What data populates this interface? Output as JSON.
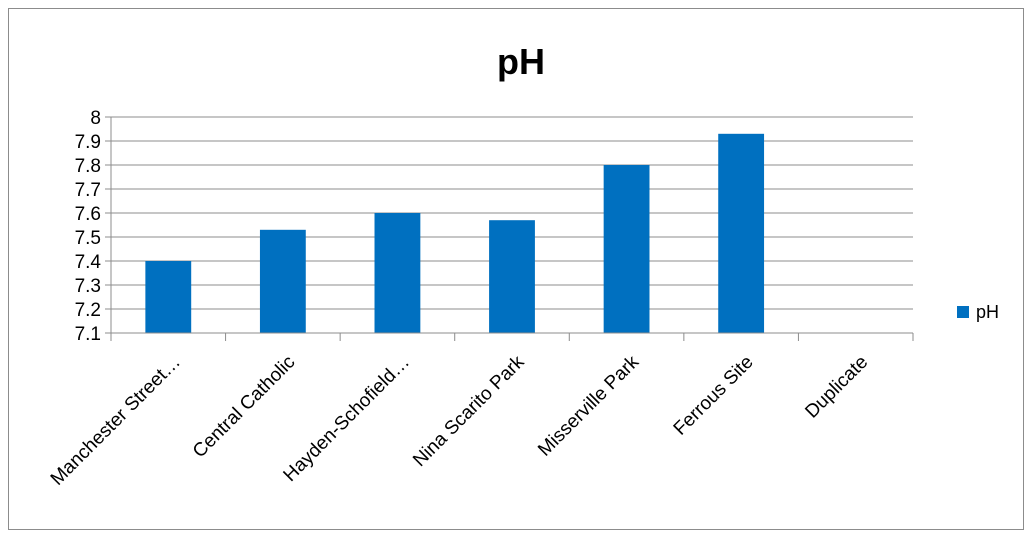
{
  "chart_data": {
    "type": "bar",
    "title": "pH",
    "categories": [
      "Manchester Street…",
      "Central Catholic",
      "Hayden-Schofield…",
      "Nina Scarito Park",
      "Misserville Park",
      "Ferrous Site",
      "Duplicate"
    ],
    "series": [
      {
        "name": "pH",
        "values": [
          7.4,
          7.53,
          7.6,
          7.57,
          7.8,
          7.93,
          null
        ],
        "color": "#0070C0"
      }
    ],
    "ylim": [
      7.1,
      8.0
    ],
    "yticks": [
      "7.1",
      "7.2",
      "7.3",
      "7.4",
      "7.5",
      "7.6",
      "7.7",
      "7.8",
      "7.9",
      "8"
    ],
    "grid": true,
    "legend_position": "right",
    "xlabel": "",
    "ylabel": ""
  }
}
